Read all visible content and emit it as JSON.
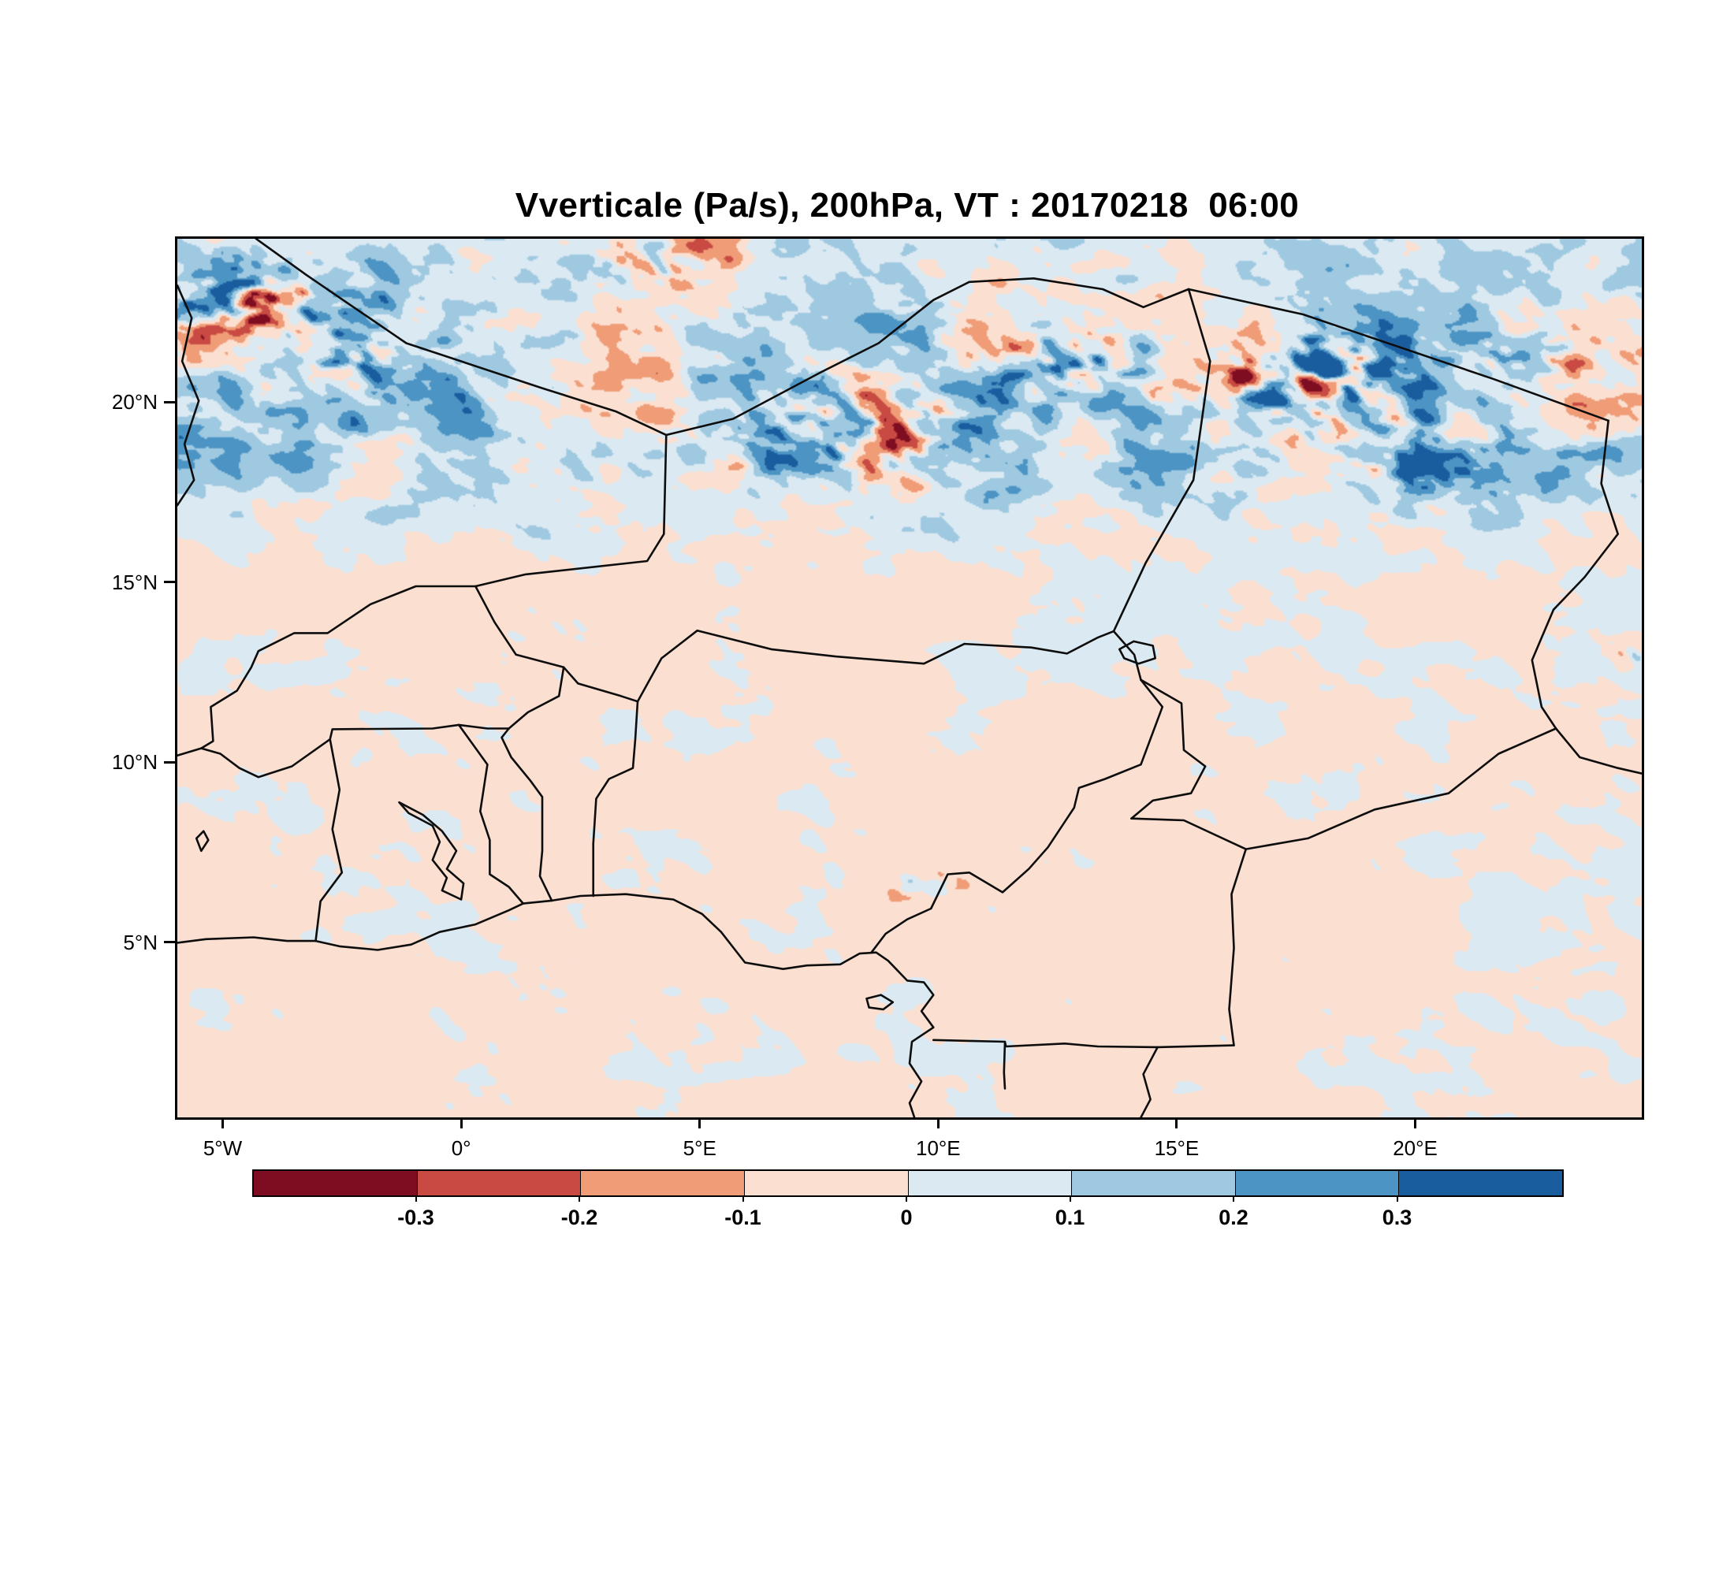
{
  "title": "Vverticale (Pa/s), 200hPa, VT : 20170218  06:00",
  "chart_data": {
    "type": "heatmap",
    "title": "Vverticale (Pa/s), 200hPa, VT : 20170218  06:00",
    "variable": "Vverticale",
    "units": "Pa/s",
    "pressure_level": "200hPa",
    "valid_time": "20170218 06:00",
    "extent": {
      "lon_min": -6.0,
      "lon_max": 24.7,
      "lat_min": 0.2,
      "lat_max": 24.6
    },
    "x_ticks": [
      {
        "value": -5,
        "label": "5°W"
      },
      {
        "value": 0,
        "label": "0°"
      },
      {
        "value": 5,
        "label": "5°E"
      },
      {
        "value": 10,
        "label": "10°E"
      },
      {
        "value": 15,
        "label": "15°E"
      },
      {
        "value": 20,
        "label": "20°E"
      }
    ],
    "y_ticks": [
      {
        "value": 5,
        "label": "5°N"
      },
      {
        "value": 10,
        "label": "10°N"
      },
      {
        "value": 15,
        "label": "15°N"
      },
      {
        "value": 20,
        "label": "20°N"
      }
    ],
    "colorbar": {
      "levels": [
        -0.3,
        -0.2,
        -0.1,
        0,
        0.1,
        0.2,
        0.3
      ],
      "tick_labels": [
        "-0.3",
        "-0.2",
        "-0.1",
        "0",
        "0.1",
        "0.2",
        "0.3"
      ],
      "colors": [
        "#7f0d22",
        "#c84a42",
        "#ef9c77",
        "#fbe0d1",
        "#dbe9f2",
        "#9fc9e1",
        "#4b94c4",
        "#1a5d9f"
      ]
    },
    "grid": false,
    "legend_position": "bottom",
    "field_sim": {
      "seed": 1234,
      "base": -0.016,
      "north_bias": 0.075,
      "hotspots": [
        [
          -4.4,
          22.9,
          1.7,
          0.9
        ],
        [
          -2.2,
          21.3,
          1.5,
          0.5
        ],
        [
          4.3,
          23.9,
          1.3,
          0.55
        ],
        [
          8.0,
          19.3,
          2.4,
          0.5
        ],
        [
          12.6,
          21.2,
          1.6,
          0.55
        ],
        [
          17.9,
          20.7,
          2.0,
          0.95
        ],
        [
          20.3,
          18.4,
          1.6,
          0.45
        ],
        [
          22.5,
          21.5,
          1.5,
          0.35
        ],
        [
          9.6,
          6.6,
          0.7,
          0.5
        ],
        [
          12.2,
          7.6,
          0.6,
          0.35
        ],
        [
          24.4,
          13.0,
          0.5,
          0.55
        ]
      ]
    },
    "borders": [
      {
        "name": "coastline-gulf-of-guinea",
        "points": [
          [
            -6,
            5.05
          ],
          [
            -5.4,
            5.15
          ],
          [
            -4.4,
            5.2
          ],
          [
            -3.7,
            5.1
          ],
          [
            -3.1,
            5.1
          ],
          [
            -2.6,
            4.95
          ],
          [
            -1.8,
            4.85
          ],
          [
            -1.1,
            5.0
          ],
          [
            -0.5,
            5.35
          ],
          [
            0.25,
            5.56
          ],
          [
            0.95,
            5.95
          ],
          [
            1.25,
            6.14
          ],
          [
            1.85,
            6.22
          ],
          [
            2.45,
            6.35
          ],
          [
            3.4,
            6.4
          ],
          [
            4.4,
            6.25
          ],
          [
            5.0,
            5.85
          ],
          [
            5.4,
            5.35
          ],
          [
            5.9,
            4.5
          ],
          [
            6.7,
            4.32
          ],
          [
            7.2,
            4.42
          ],
          [
            7.9,
            4.45
          ],
          [
            8.3,
            4.75
          ],
          [
            8.65,
            4.78
          ],
          [
            8.9,
            4.55
          ],
          [
            9.3,
            4.0
          ],
          [
            9.65,
            3.95
          ],
          [
            9.85,
            3.6
          ],
          [
            9.6,
            3.15
          ],
          [
            9.85,
            2.7
          ],
          [
            9.4,
            2.3
          ],
          [
            9.35,
            1.7
          ],
          [
            9.6,
            1.2
          ],
          [
            9.35,
            0.6
          ],
          [
            9.45,
            0.2
          ]
        ]
      },
      {
        "name": "bioko-island",
        "points": [
          [
            8.45,
            3.5
          ],
          [
            8.75,
            3.6
          ],
          [
            9.0,
            3.4
          ],
          [
            8.8,
            3.2
          ],
          [
            8.5,
            3.25
          ],
          [
            8.45,
            3.5
          ]
        ]
      },
      {
        "name": "mauritania-mali",
        "points": [
          [
            -6,
            23.3
          ],
          [
            -5.7,
            22.4
          ],
          [
            -5.9,
            21.2
          ],
          [
            -5.55,
            20.1
          ],
          [
            -5.85,
            18.9
          ],
          [
            -5.65,
            17.9
          ],
          [
            -6,
            17.2
          ]
        ]
      },
      {
        "name": "algeria-mali",
        "points": [
          [
            -4.35,
            24.6
          ],
          [
            -3.3,
            23.6
          ],
          [
            -1.2,
            21.7
          ],
          [
            1.65,
            20.45
          ],
          [
            3.2,
            19.8
          ],
          [
            4.25,
            19.15
          ]
        ]
      },
      {
        "name": "algeria-niger",
        "points": [
          [
            4.25,
            19.15
          ],
          [
            5.65,
            19.6
          ],
          [
            7.5,
            20.9
          ],
          [
            8.7,
            21.7
          ],
          [
            9.85,
            22.9
          ],
          [
            10.6,
            23.4
          ],
          [
            11.95,
            23.5
          ]
        ]
      },
      {
        "name": "niger-libya",
        "points": [
          [
            11.95,
            23.5
          ],
          [
            13.4,
            23.2
          ],
          [
            14.25,
            22.7
          ],
          [
            15.2,
            23.2
          ]
        ]
      },
      {
        "name": "libya-chad",
        "points": [
          [
            15.2,
            23.2
          ],
          [
            17.6,
            22.5
          ],
          [
            21.6,
            20.7
          ],
          [
            24.0,
            19.55
          ]
        ]
      },
      {
        "name": "chad-sudan",
        "points": [
          [
            24.0,
            19.55
          ],
          [
            23.85,
            17.8
          ],
          [
            24.2,
            16.4
          ],
          [
            23.5,
            15.2
          ],
          [
            22.85,
            14.3
          ],
          [
            22.4,
            12.9
          ],
          [
            22.6,
            11.6
          ],
          [
            22.9,
            11.0
          ]
        ]
      },
      {
        "name": "sudan-car",
        "points": [
          [
            22.9,
            11.0
          ],
          [
            23.4,
            10.2
          ],
          [
            24.2,
            9.9
          ],
          [
            24.7,
            9.75
          ]
        ]
      },
      {
        "name": "niger-chad",
        "points": [
          [
            15.2,
            23.2
          ],
          [
            15.65,
            21.2
          ],
          [
            15.3,
            17.9
          ],
          [
            14.3,
            15.6
          ],
          [
            13.63,
            13.7
          ]
        ]
      },
      {
        "name": "mali-niger",
        "points": [
          [
            4.25,
            19.15
          ],
          [
            4.2,
            16.4
          ],
          [
            3.85,
            15.65
          ],
          [
            1.3,
            15.28
          ],
          [
            0.25,
            14.95
          ]
        ]
      },
      {
        "name": "niger-burkina-benin",
        "points": [
          [
            0.25,
            14.95
          ],
          [
            0.65,
            13.95
          ],
          [
            1.1,
            13.05
          ],
          [
            2.1,
            12.7
          ],
          [
            2.4,
            12.25
          ],
          [
            3.3,
            11.9
          ],
          [
            3.65,
            11.75
          ]
        ]
      },
      {
        "name": "niger-nigeria",
        "points": [
          [
            3.65,
            11.75
          ],
          [
            4.15,
            12.95
          ],
          [
            4.9,
            13.72
          ],
          [
            6.45,
            13.2
          ],
          [
            7.8,
            13.0
          ],
          [
            9.65,
            12.8
          ],
          [
            10.5,
            13.35
          ],
          [
            11.9,
            13.25
          ],
          [
            12.65,
            13.08
          ],
          [
            13.3,
            13.53
          ],
          [
            13.63,
            13.7
          ]
        ]
      },
      {
        "name": "lake-chad",
        "points": [
          [
            13.75,
            13.2
          ],
          [
            14.05,
            13.42
          ],
          [
            14.45,
            13.3
          ],
          [
            14.5,
            12.95
          ],
          [
            14.15,
            12.8
          ],
          [
            13.85,
            12.95
          ],
          [
            13.75,
            13.2
          ]
        ]
      },
      {
        "name": "chad-nigeria-junction",
        "points": [
          [
            13.63,
            13.7
          ],
          [
            14.06,
            13.05
          ],
          [
            14.2,
            12.35
          ]
        ]
      },
      {
        "name": "nigeria-cameroon",
        "points": [
          [
            14.2,
            12.35
          ],
          [
            14.65,
            11.6
          ],
          [
            14.2,
            10.0
          ],
          [
            13.45,
            9.6
          ],
          [
            12.9,
            9.35
          ],
          [
            12.8,
            8.8
          ],
          [
            12.25,
            7.7
          ],
          [
            11.85,
            7.1
          ],
          [
            11.3,
            6.45
          ],
          [
            10.6,
            7.0
          ],
          [
            10.15,
            6.95
          ],
          [
            9.8,
            6.0
          ],
          [
            9.3,
            5.7
          ],
          [
            8.85,
            5.3
          ],
          [
            8.55,
            4.78
          ]
        ]
      },
      {
        "name": "cameroon-chad",
        "points": [
          [
            14.2,
            12.35
          ],
          [
            15.05,
            11.7
          ],
          [
            15.1,
            10.4
          ],
          [
            15.55,
            9.95
          ],
          [
            15.25,
            9.2
          ],
          [
            14.45,
            9.0
          ],
          [
            14.0,
            8.5
          ]
        ]
      },
      {
        "name": "chad-car",
        "points": [
          [
            14.0,
            8.5
          ],
          [
            15.1,
            8.45
          ],
          [
            16.4,
            7.65
          ],
          [
            17.7,
            7.95
          ],
          [
            19.1,
            8.75
          ],
          [
            20.65,
            9.2
          ],
          [
            21.7,
            10.3
          ],
          [
            22.9,
            11.0
          ]
        ]
      },
      {
        "name": "cameroon-car",
        "points": [
          [
            16.4,
            7.65
          ],
          [
            16.1,
            6.4
          ],
          [
            16.15,
            4.9
          ],
          [
            16.05,
            3.2
          ],
          [
            16.15,
            2.2
          ]
        ]
      },
      {
        "name": "cameroon-south-border",
        "points": [
          [
            9.85,
            2.35
          ],
          [
            10.7,
            2.32
          ],
          [
            11.35,
            2.3
          ],
          [
            11.37,
            2.17
          ],
          [
            12.6,
            2.25
          ],
          [
            13.3,
            2.17
          ],
          [
            14.55,
            2.15
          ],
          [
            16.15,
            2.2
          ]
        ]
      },
      {
        "name": "eq-guinea-gabon",
        "points": [
          [
            11.35,
            2.3
          ],
          [
            11.33,
            1.45
          ],
          [
            11.35,
            1.0
          ]
        ]
      },
      {
        "name": "gabon-congo",
        "points": [
          [
            14.55,
            2.15
          ],
          [
            14.25,
            1.4
          ],
          [
            14.4,
            0.7
          ],
          [
            14.2,
            0.2
          ]
        ]
      },
      {
        "name": "ghana-cote-divoire",
        "points": [
          [
            -3.1,
            5.1
          ],
          [
            -3.0,
            6.2
          ],
          [
            -2.55,
            7.0
          ],
          [
            -2.75,
            8.2
          ],
          [
            -2.6,
            9.3
          ],
          [
            -2.8,
            10.7
          ]
        ]
      },
      {
        "name": "cote-divoire-north",
        "points": [
          [
            -6,
            10.25
          ],
          [
            -5.5,
            10.45
          ],
          [
            -5.1,
            10.3
          ],
          [
            -4.7,
            9.9
          ],
          [
            -4.3,
            9.65
          ],
          [
            -3.6,
            9.95
          ],
          [
            -2.8,
            10.7
          ]
        ]
      },
      {
        "name": "ghana-burkina",
        "points": [
          [
            -2.8,
            10.7
          ],
          [
            -2.75,
            10.98
          ],
          [
            -0.65,
            11.0
          ],
          [
            -0.1,
            11.1
          ],
          [
            0.5,
            11.0
          ],
          [
            0.95,
            11.0
          ]
        ]
      },
      {
        "name": "ghana-togo",
        "points": [
          [
            1.25,
            6.14
          ],
          [
            0.95,
            6.6
          ],
          [
            0.55,
            6.95
          ],
          [
            0.55,
            7.9
          ],
          [
            0.35,
            8.7
          ],
          [
            0.5,
            10.0
          ],
          [
            -0.1,
            11.1
          ]
        ]
      },
      {
        "name": "togo-benin",
        "points": [
          [
            1.85,
            6.22
          ],
          [
            1.6,
            6.9
          ],
          [
            1.65,
            7.6
          ],
          [
            1.65,
            9.1
          ],
          [
            1.4,
            9.55
          ],
          [
            1.0,
            10.2
          ],
          [
            0.8,
            10.75
          ],
          [
            0.95,
            11.0
          ]
        ]
      },
      {
        "name": "benin-burkina",
        "points": [
          [
            0.95,
            11.0
          ],
          [
            1.35,
            11.45
          ],
          [
            2.0,
            11.9
          ],
          [
            2.1,
            12.7
          ]
        ]
      },
      {
        "name": "benin-nigeria",
        "points": [
          [
            2.72,
            6.35
          ],
          [
            2.72,
            7.8
          ],
          [
            2.78,
            9.05
          ],
          [
            3.05,
            9.6
          ],
          [
            3.55,
            9.9
          ],
          [
            3.6,
            10.7
          ],
          [
            3.65,
            11.75
          ]
        ]
      },
      {
        "name": "mali-burkina",
        "points": [
          [
            -5.5,
            10.45
          ],
          [
            -5.25,
            10.65
          ],
          [
            -5.3,
            11.6
          ],
          [
            -4.75,
            12.05
          ],
          [
            -4.45,
            12.7
          ],
          [
            -4.3,
            13.15
          ],
          [
            -3.55,
            13.65
          ],
          [
            -2.85,
            13.65
          ],
          [
            -1.95,
            14.45
          ],
          [
            -1.0,
            14.95
          ],
          [
            0.25,
            14.95
          ]
        ]
      },
      {
        "name": "lake-volta",
        "points": [
          [
            -0.05,
            6.25
          ],
          [
            0.0,
            6.7
          ],
          [
            -0.35,
            7.1
          ],
          [
            -0.15,
            7.6
          ],
          [
            -0.45,
            8.15
          ],
          [
            -0.85,
            8.6
          ],
          [
            -1.35,
            8.95
          ],
          [
            -1.15,
            8.65
          ],
          [
            -0.65,
            8.3
          ],
          [
            -0.5,
            7.85
          ],
          [
            -0.65,
            7.35
          ],
          [
            -0.35,
            6.85
          ],
          [
            -0.45,
            6.5
          ],
          [
            -0.05,
            6.25
          ]
        ]
      },
      {
        "name": "lake-kossou",
        "points": [
          [
            -5.5,
            7.6
          ],
          [
            -5.35,
            7.9
          ],
          [
            -5.45,
            8.15
          ],
          [
            -5.6,
            7.95
          ],
          [
            -5.5,
            7.6
          ]
        ]
      }
    ]
  }
}
